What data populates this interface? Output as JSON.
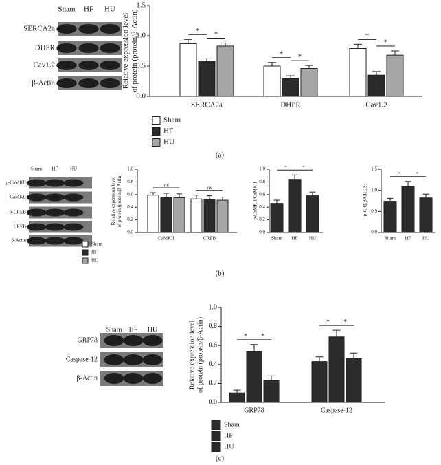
{
  "panel_labels": [
    "(a)",
    "(b)",
    "(c)"
  ],
  "blots": [
    {
      "lanes": [
        "Sham",
        "HF",
        "HU"
      ],
      "rows": [
        "SERCA2a",
        "DHPR",
        "Cav1.2",
        "β-Actin"
      ]
    },
    {
      "lanes": [
        "Sham",
        "HF",
        "HU"
      ],
      "rows": [
        "p-CaMKII",
        "CaMKII",
        "p-CREB",
        "CREB",
        "β-Actin"
      ]
    },
    {
      "lanes": [
        "Sham",
        "HF",
        "HU"
      ],
      "rows": [
        "GRP78",
        "Caspase-12",
        "β-Actin"
      ]
    }
  ],
  "chart_data": [
    {
      "type": "bar",
      "ylabel": [
        "Relative expression level",
        "of protein (protein/β-Actin)"
      ],
      "categories": [
        "SERCA2a",
        "DHPR",
        "Cav1.2"
      ],
      "series": [
        {
          "name": "Sham",
          "color": "#ffffff",
          "values": [
            0.87,
            0.5,
            0.79
          ],
          "errors": [
            0.07,
            0.06,
            0.07
          ]
        },
        {
          "name": "HF",
          "color": "#2b2b2b",
          "values": [
            0.58,
            0.29,
            0.35
          ],
          "errors": [
            0.05,
            0.05,
            0.06
          ]
        },
        {
          "name": "HU",
          "color": "#a6a6a6",
          "values": [
            0.83,
            0.46,
            0.68
          ],
          "errors": [
            0.05,
            0.05,
            0.07
          ]
        }
      ],
      "ylim": [
        0,
        1.5
      ],
      "yticks": [
        {
          "value": 0,
          "label": "0.0"
        },
        0.5,
        {
          "value": 1,
          "label": "1.0"
        },
        1.5
      ],
      "annotations": [
        "*",
        "*",
        "*",
        "*",
        "*",
        "*"
      ]
    },
    {
      "type": "bar",
      "ylabel": [
        "Relative expression level",
        "of protein (protein/β-Actin)"
      ],
      "categories": [
        "CaMKII",
        "CREB"
      ],
      "series": [
        {
          "name": "Sham",
          "color": "#ffffff",
          "values": [
            0.59,
            0.53
          ],
          "errors": [
            0.04,
            0.06
          ]
        },
        {
          "name": "HF",
          "color": "#2b2b2b",
          "values": [
            0.55,
            0.52
          ],
          "errors": [
            0.07,
            0.06
          ]
        },
        {
          "name": "HU",
          "color": "#a6a6a6",
          "values": [
            0.55,
            0.51
          ],
          "errors": [
            0.06,
            0.05
          ]
        }
      ],
      "ylim": [
        0,
        1
      ],
      "yticks": [
        {
          "value": 0,
          "label": "0.0"
        },
        0.2,
        0.4,
        0.6,
        0.8,
        {
          "value": 1,
          "label": "1.0"
        }
      ],
      "annotations": [
        "ns",
        "ns"
      ]
    },
    {
      "type": "bar",
      "ylabel": [
        "p-CaMKII/CaMKII"
      ],
      "categories": [
        "Sham",
        "HF",
        "HU"
      ],
      "values": [
        0.46,
        0.84,
        0.58
      ],
      "errors": [
        0.05,
        0.07,
        0.06
      ],
      "color": "#2b2b2b",
      "ylim": [
        0,
        1
      ],
      "yticks": [
        {
          "value": 0,
          "label": "0.0"
        },
        0.2,
        0.4,
        0.6,
        0.8,
        {
          "value": 1,
          "label": "1.0"
        }
      ],
      "annotations": [
        "*",
        "*"
      ]
    },
    {
      "type": "bar",
      "ylabel": [
        "p-CREB/CREB"
      ],
      "categories": [
        "Sham",
        "HF",
        "HU"
      ],
      "values": [
        0.74,
        1.09,
        0.82
      ],
      "errors": [
        0.07,
        0.12,
        0.09
      ],
      "color": "#2b2b2b",
      "ylim": [
        0,
        1.5
      ],
      "yticks": [
        {
          "value": 0,
          "label": "0.0"
        },
        0.5,
        {
          "value": 1,
          "label": "1.0"
        },
        1.5
      ],
      "annotations": [
        "*",
        "*"
      ]
    },
    {
      "type": "bar",
      "ylabel": [
        "Relative expression level",
        "of protein (protein/β-Actin)"
      ],
      "categories": [
        "GRP78",
        "Caspase-12"
      ],
      "series": [
        {
          "name": "Sham",
          "color": "#2b2b2b",
          "values": [
            0.1,
            0.43
          ],
          "errors": [
            0.03,
            0.05
          ]
        },
        {
          "name": "HF",
          "color": "#2b2b2b",
          "values": [
            0.54,
            0.69
          ],
          "errors": [
            0.07,
            0.07
          ]
        },
        {
          "name": "HU",
          "color": "#2b2b2b",
          "values": [
            0.23,
            0.46
          ],
          "errors": [
            0.05,
            0.06
          ]
        }
      ],
      "ylim": [
        0,
        1
      ],
      "yticks": [
        {
          "value": 0,
          "label": "0.0"
        },
        0.2,
        0.4,
        0.6,
        0.8,
        {
          "value": 1,
          "label": "1.0"
        }
      ],
      "annotations": [
        "*",
        "*",
        "*",
        "*"
      ]
    }
  ]
}
